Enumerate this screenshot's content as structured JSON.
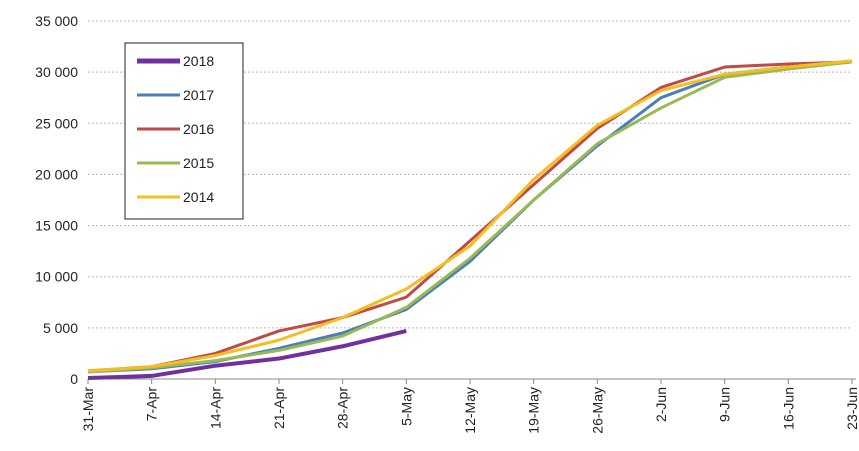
{
  "chart_data": {
    "type": "line",
    "categories": [
      "31-Mar",
      "7-Apr",
      "14-Apr",
      "21-Apr",
      "28-Apr",
      "5-May",
      "12-May",
      "19-May",
      "26-May",
      "2-Jun",
      "9-Jun",
      "16-Jun",
      "23-Jun"
    ],
    "series": [
      {
        "name": "2018",
        "color": "#7030a0",
        "values": [
          100,
          300,
          1300,
          2000,
          3200,
          4700,
          null,
          null,
          null,
          null,
          null,
          null,
          null
        ]
      },
      {
        "name": "2017",
        "color": "#4a7ebb",
        "values": [
          700,
          1000,
          1700,
          3000,
          4500,
          6800,
          11500,
          17500,
          22800,
          27500,
          29800,
          30500,
          31000
        ]
      },
      {
        "name": "2016",
        "color": "#be4b48",
        "values": [
          800,
          1200,
          2500,
          4700,
          6000,
          8000,
          13500,
          19000,
          24500,
          28500,
          30500,
          30800,
          31000
        ]
      },
      {
        "name": "2015",
        "color": "#98b954",
        "values": [
          700,
          1100,
          1800,
          2800,
          4200,
          7000,
          11800,
          17500,
          23000,
          26500,
          29500,
          30300,
          31000
        ]
      },
      {
        "name": "2014",
        "color": "#f5bd1f",
        "values": [
          800,
          1200,
          2300,
          3800,
          6000,
          8800,
          13000,
          19500,
          24800,
          28200,
          29800,
          30500,
          31100
        ]
      }
    ],
    "ylim": [
      0,
      35000
    ],
    "yticks": [
      0,
      {
        "value": 5000,
        "label": "5 000"
      },
      {
        "value": 10000,
        "label": "10 000"
      },
      {
        "value": 15000,
        "label": "15 000"
      },
      {
        "value": 20000,
        "label": "20 000"
      },
      {
        "value": 25000,
        "label": "25 000"
      },
      {
        "value": 30000,
        "label": "30 000"
      },
      {
        "value": 35000,
        "label": "35 000"
      }
    ],
    "grid": true,
    "legend": "top-left"
  }
}
